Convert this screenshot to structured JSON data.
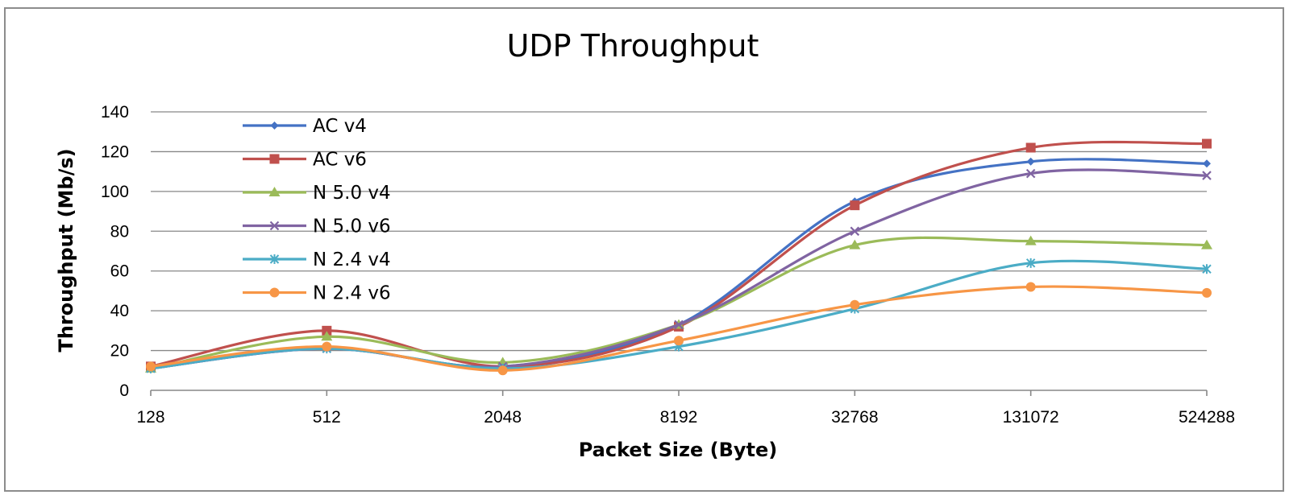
{
  "chart_data": {
    "type": "line",
    "title": "UDP Throughput",
    "xlabel": "Packet Size (Byte)",
    "ylabel": "Throughput (Mb/s)",
    "categories": [
      "128",
      "512",
      "2048",
      "8192",
      "32768",
      "131072",
      "524288"
    ],
    "ylim": [
      0,
      140
    ],
    "yticks": [
      "0",
      "20",
      "40",
      "60",
      "80",
      "100",
      "120",
      "140"
    ],
    "grid": "horizontal",
    "smoothed": true,
    "legend_position": "top-left",
    "series": [
      {
        "name": "AC v4",
        "color": "#4472c4",
        "marker": "diamond",
        "values": [
          11,
          21,
          12,
          33,
          95,
          115,
          114
        ]
      },
      {
        "name": "AC v6",
        "color": "#c0504d",
        "marker": "square",
        "values": [
          12,
          30,
          12,
          32,
          93,
          122,
          124
        ]
      },
      {
        "name": "N 5.0 v4",
        "color": "#9bbb59",
        "marker": "triangle",
        "values": [
          11,
          27,
          14,
          33,
          73,
          75,
          73
        ]
      },
      {
        "name": "N 5.0 v6",
        "color": "#8064a2",
        "marker": "x",
        "values": [
          11,
          21,
          12,
          33,
          80,
          109,
          108
        ]
      },
      {
        "name": "N 2.4 v4",
        "color": "#4bacc6",
        "marker": "star",
        "values": [
          11,
          21,
          11,
          22,
          41,
          64,
          61
        ]
      },
      {
        "name": "N 2.4 v6",
        "color": "#f79646",
        "marker": "circle",
        "values": [
          12,
          22,
          10,
          25,
          43,
          52,
          49
        ]
      }
    ]
  }
}
